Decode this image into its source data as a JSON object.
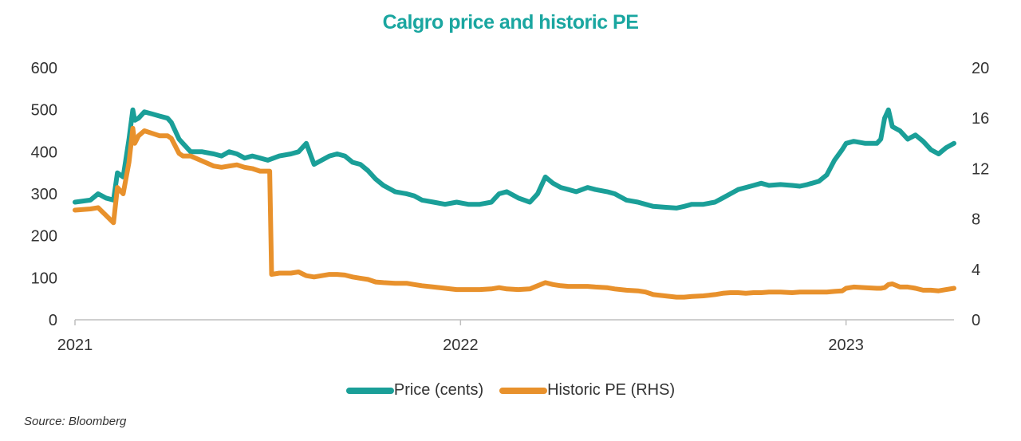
{
  "colors": {
    "title": "#1aa6a0",
    "price": "#1a9f98",
    "pe": "#e8912c",
    "axis": "#bfbfbf",
    "text": "#333333"
  },
  "chart_data": {
    "type": "line",
    "title": "Calgro price and historic PE",
    "source": "Source: Bloomberg",
    "x_range": [
      2021.0,
      2023.28
    ],
    "x_ticks": [
      {
        "value": 2021.0,
        "label": "2021"
      },
      {
        "value": 2022.0,
        "label": "2022"
      },
      {
        "value": 2023.0,
        "label": "2023"
      }
    ],
    "y_left": {
      "range": [
        0,
        600
      ],
      "ticks": [
        0,
        100,
        200,
        300,
        400,
        500,
        600
      ],
      "label": "Price (cents)"
    },
    "y_right": {
      "range": [
        0,
        20
      ],
      "ticks": [
        0,
        4,
        8,
        12,
        16,
        20
      ],
      "label": "Historic PE (RHS)"
    },
    "legend_position": "bottom",
    "series": [
      {
        "name": "Price (cents)",
        "axis": "left",
        "color": "#1a9f98",
        "x": [
          2021.0,
          2021.04,
          2021.06,
          2021.08,
          2021.1,
          2021.11,
          2021.125,
          2021.14,
          2021.15,
          2021.155,
          2021.165,
          2021.18,
          2021.2,
          2021.22,
          2021.24,
          2021.25,
          2021.27,
          2021.28,
          2021.3,
          2021.33,
          2021.36,
          2021.38,
          2021.4,
          2021.42,
          2021.44,
          2021.46,
          2021.48,
          2021.5,
          2021.53,
          2021.56,
          2021.58,
          2021.6,
          2021.62,
          2021.64,
          2021.66,
          2021.68,
          2021.7,
          2021.72,
          2021.74,
          2021.76,
          2021.78,
          2021.8,
          2021.83,
          2021.86,
          2021.88,
          2021.9,
          2021.93,
          2021.96,
          2021.99,
          2022.02,
          2022.05,
          2022.08,
          2022.1,
          2022.12,
          2022.15,
          2022.18,
          2022.2,
          2022.22,
          2022.24,
          2022.26,
          2022.28,
          2022.3,
          2022.33,
          2022.35,
          2022.38,
          2022.4,
          2022.43,
          2022.46,
          2022.48,
          2022.5,
          2022.53,
          2022.56,
          2022.58,
          2022.6,
          2022.63,
          2022.66,
          2022.68,
          2022.7,
          2022.72,
          2022.74,
          2022.76,
          2022.78,
          2022.8,
          2022.83,
          2022.86,
          2022.88,
          2022.9,
          2022.93,
          2022.95,
          2022.97,
          2022.99,
          2023.0,
          2023.02,
          2023.05,
          2023.08,
          2023.09,
          2023.1,
          2023.11,
          2023.12,
          2023.14,
          2023.16,
          2023.18,
          2023.2,
          2023.22,
          2023.24,
          2023.26,
          2023.28
        ],
        "values": [
          280,
          285,
          300,
          290,
          285,
          350,
          340,
          430,
          500,
          475,
          480,
          495,
          490,
          485,
          480,
          470,
          430,
          420,
          400,
          400,
          395,
          390,
          400,
          395,
          385,
          390,
          385,
          380,
          390,
          395,
          400,
          420,
          370,
          380,
          390,
          395,
          390,
          375,
          370,
          355,
          335,
          320,
          305,
          300,
          295,
          285,
          280,
          275,
          280,
          275,
          275,
          280,
          300,
          305,
          290,
          280,
          300,
          340,
          325,
          315,
          310,
          305,
          315,
          310,
          305,
          300,
          285,
          280,
          275,
          270,
          268,
          266,
          270,
          275,
          275,
          280,
          290,
          300,
          310,
          315,
          320,
          325,
          320,
          322,
          320,
          318,
          322,
          330,
          345,
          380,
          405,
          420,
          425,
          420,
          420,
          430,
          480,
          500,
          460,
          450,
          430,
          440,
          425,
          405,
          395,
          410,
          420
        ]
      },
      {
        "name": "Historic PE (RHS)",
        "axis": "right",
        "color": "#e8912c",
        "x": [
          2021.0,
          2021.04,
          2021.06,
          2021.08,
          2021.09,
          2021.1,
          2021.11,
          2021.125,
          2021.14,
          2021.15,
          2021.155,
          2021.165,
          2021.18,
          2021.2,
          2021.22,
          2021.24,
          2021.25,
          2021.27,
          2021.28,
          2021.3,
          2021.33,
          2021.36,
          2021.38,
          2021.4,
          2021.42,
          2021.44,
          2021.46,
          2021.48,
          2021.5,
          2021.505,
          2021.51,
          2021.53,
          2021.56,
          2021.58,
          2021.6,
          2021.62,
          2021.64,
          2021.66,
          2021.68,
          2021.7,
          2021.72,
          2021.74,
          2021.76,
          2021.78,
          2021.8,
          2021.83,
          2021.86,
          2021.88,
          2021.9,
          2021.93,
          2021.96,
          2021.99,
          2022.02,
          2022.05,
          2022.08,
          2022.1,
          2022.12,
          2022.15,
          2022.18,
          2022.2,
          2022.22,
          2022.24,
          2022.26,
          2022.28,
          2022.3,
          2022.33,
          2022.35,
          2022.38,
          2022.4,
          2022.43,
          2022.46,
          2022.48,
          2022.5,
          2022.53,
          2022.56,
          2022.58,
          2022.6,
          2022.63,
          2022.66,
          2022.68,
          2022.7,
          2022.72,
          2022.74,
          2022.76,
          2022.78,
          2022.8,
          2022.83,
          2022.86,
          2022.88,
          2022.9,
          2022.93,
          2022.95,
          2022.97,
          2022.99,
          2023.0,
          2023.02,
          2023.05,
          2023.08,
          2023.09,
          2023.1,
          2023.11,
          2023.12,
          2023.14,
          2023.16,
          2023.18,
          2023.2,
          2023.22,
          2023.24,
          2023.26,
          2023.28
        ],
        "values": [
          8.7,
          8.8,
          8.9,
          8.3,
          8.0,
          7.7,
          10.5,
          10.0,
          12.5,
          15.2,
          14.0,
          14.6,
          15.0,
          14.8,
          14.6,
          14.6,
          14.4,
          13.2,
          13.0,
          13.0,
          12.6,
          12.2,
          12.1,
          12.2,
          12.3,
          12.1,
          12.0,
          11.8,
          11.8,
          11.8,
          3.6,
          3.7,
          3.7,
          3.8,
          3.5,
          3.4,
          3.5,
          3.6,
          3.6,
          3.55,
          3.4,
          3.3,
          3.2,
          3.0,
          2.95,
          2.9,
          2.9,
          2.8,
          2.7,
          2.6,
          2.5,
          2.4,
          2.4,
          2.4,
          2.45,
          2.55,
          2.45,
          2.4,
          2.45,
          2.7,
          2.95,
          2.8,
          2.7,
          2.65,
          2.65,
          2.65,
          2.6,
          2.55,
          2.45,
          2.35,
          2.3,
          2.2,
          2.0,
          1.9,
          1.8,
          1.8,
          1.85,
          1.9,
          2.0,
          2.1,
          2.15,
          2.15,
          2.1,
          2.15,
          2.15,
          2.2,
          2.2,
          2.15,
          2.2,
          2.2,
          2.2,
          2.2,
          2.25,
          2.3,
          2.5,
          2.6,
          2.55,
          2.5,
          2.5,
          2.55,
          2.8,
          2.85,
          2.6,
          2.6,
          2.5,
          2.35,
          2.35,
          2.3,
          2.4,
          2.5
        ]
      }
    ]
  }
}
